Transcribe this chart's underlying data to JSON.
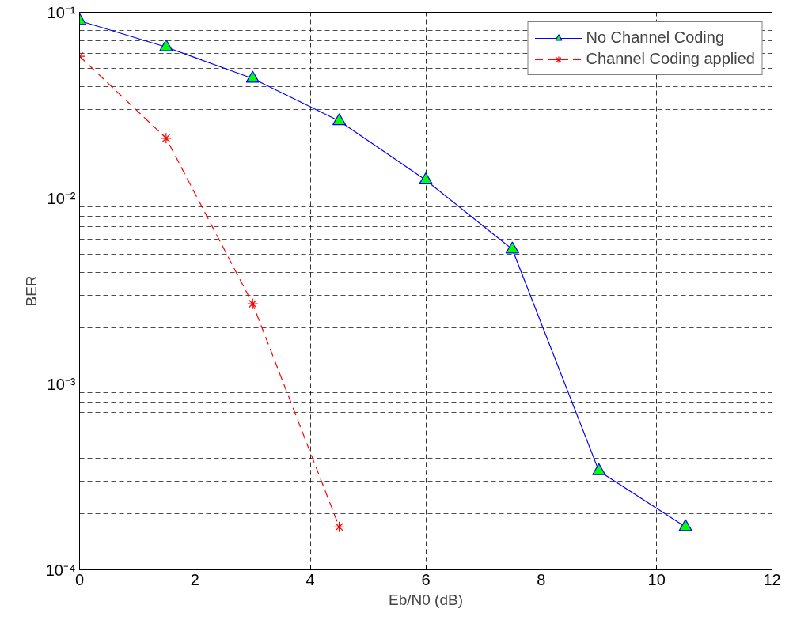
{
  "chart_data": {
    "type": "line",
    "xlabel": "Eb/N0 (dB)",
    "ylabel": "BER",
    "log": "y",
    "grid": true,
    "legend": "top right",
    "xlim": [
      0,
      12
    ],
    "xticks": [
      0,
      2,
      4,
      6,
      8,
      10,
      12
    ],
    "ylim": [
      0.0001,
      0.1
    ],
    "yticks": [
      {
        "value": 0.0001,
        "label": "10⁻⁴"
      },
      {
        "value": 0.001,
        "label": "10⁻³"
      },
      {
        "value": 0.01,
        "label": "10⁻²"
      },
      {
        "value": 0.1,
        "label": "10⁻¹"
      }
    ],
    "series": [
      {
        "name": "No Channel Coding",
        "color": "#0000ff",
        "marker": "triangle",
        "line_style": "solid",
        "x": [
          0,
          1.5,
          3,
          4.5,
          6,
          7.5,
          9,
          10.5
        ],
        "values": [
          0.09,
          0.065,
          0.044,
          0.026,
          0.0125,
          0.0053,
          0.00034,
          0.00017
        ]
      },
      {
        "name": "Channel Coding applied",
        "color": "#ff0000",
        "marker": "cross",
        "line_style": "dashed",
        "x": [
          0,
          1.5,
          3,
          4.5
        ],
        "values": [
          0.058,
          0.021,
          0.0027,
          0.00017
        ]
      }
    ]
  }
}
